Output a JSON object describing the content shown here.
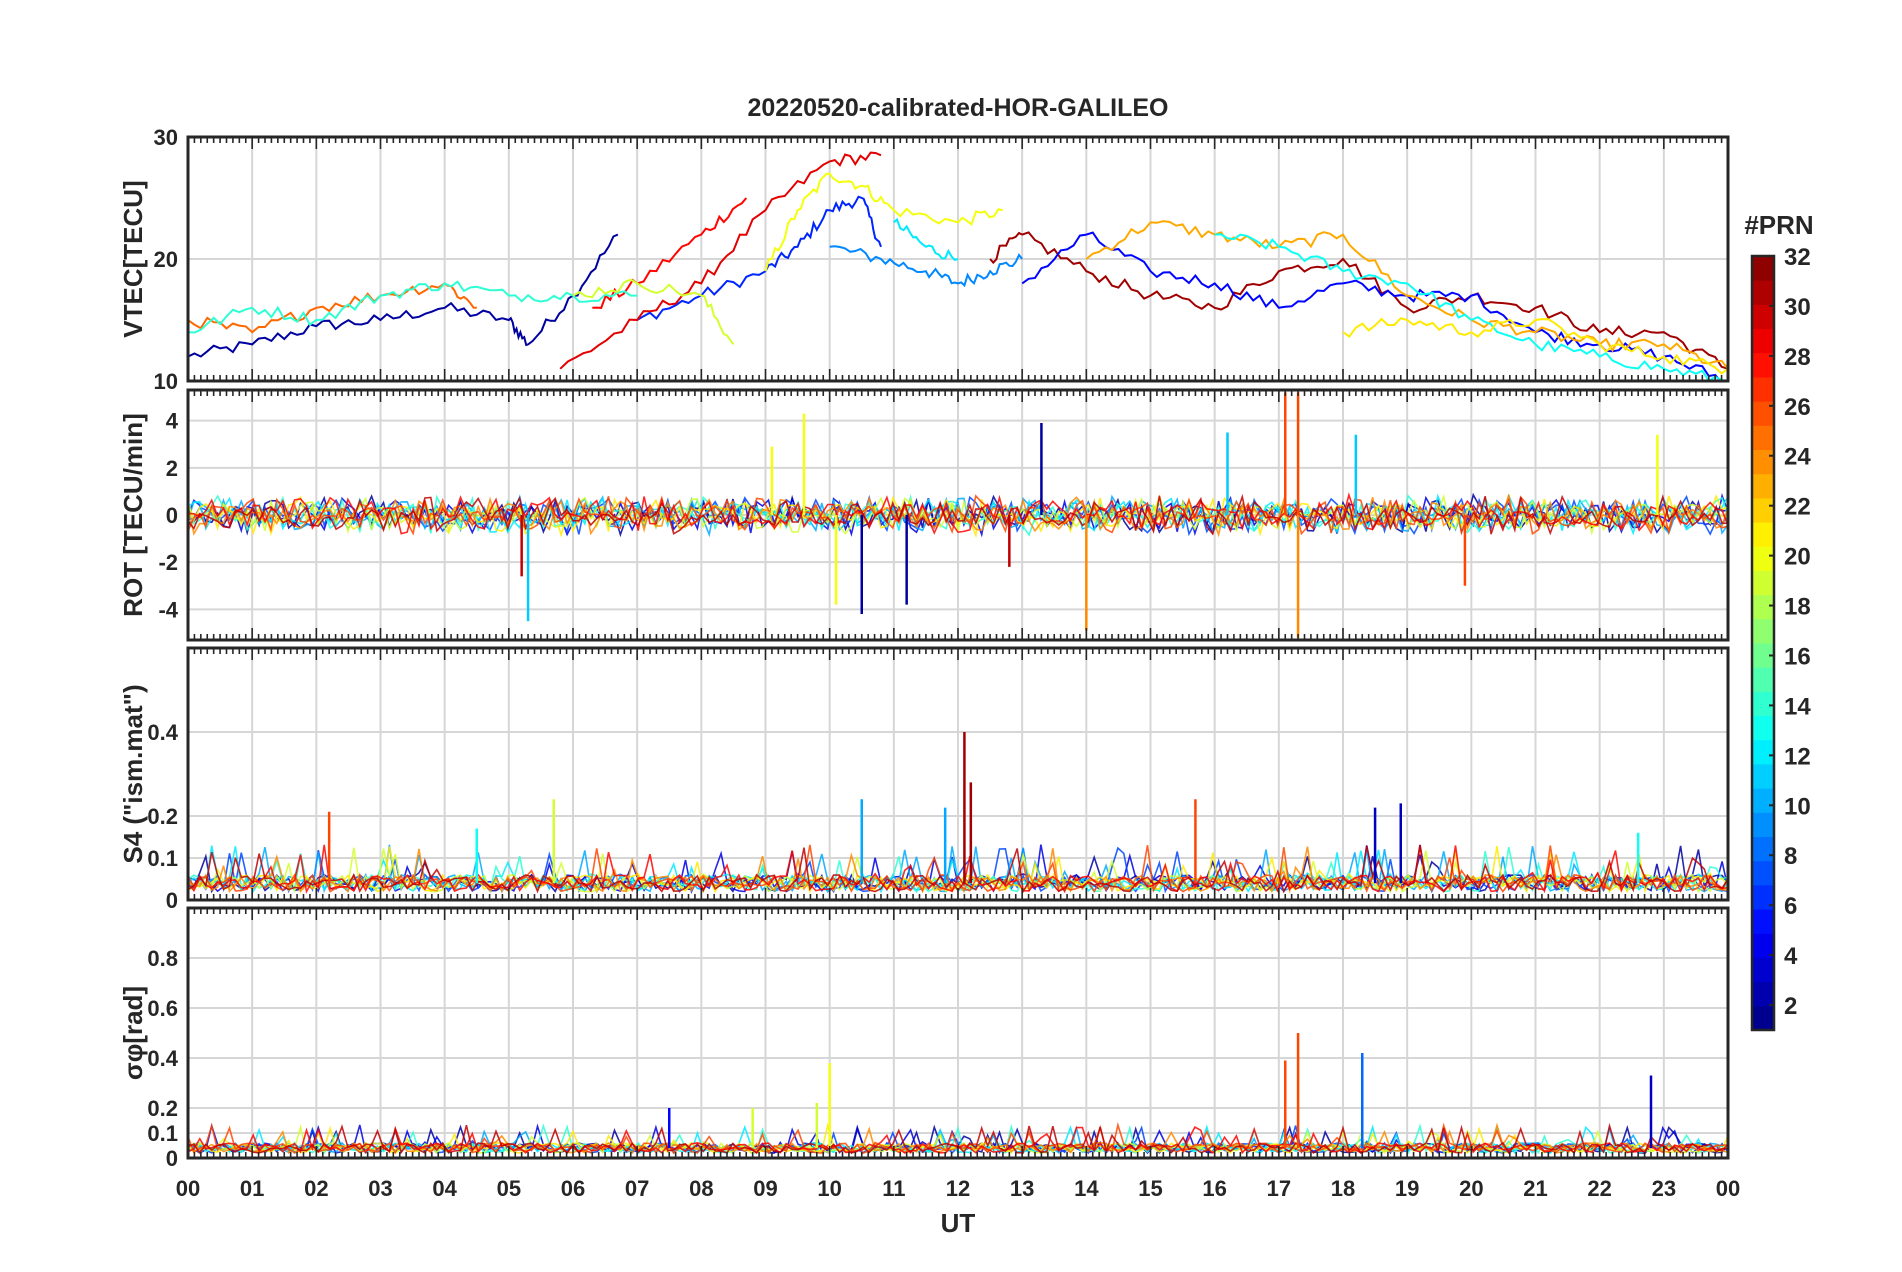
{
  "figure": {
    "title": "20220520-calibrated-HOR-GALILEO",
    "xlabel": "UT",
    "x_tick_labels": [
      "00",
      "01",
      "02",
      "03",
      "04",
      "05",
      "06",
      "07",
      "08",
      "09",
      "10",
      "11",
      "12",
      "13",
      "14",
      "15",
      "16",
      "17",
      "18",
      "19",
      "20",
      "21",
      "22",
      "23",
      "00"
    ]
  },
  "colorbar": {
    "label": "#PRN",
    "range": [
      1,
      32
    ],
    "tick_labels": [
      "2",
      "4",
      "6",
      "8",
      "10",
      "12",
      "14",
      "16",
      "18",
      "20",
      "22",
      "24",
      "26",
      "28",
      "30",
      "32"
    ],
    "colormap": "jet"
  },
  "chart_data": [
    {
      "type": "line",
      "panel": "VTEC",
      "ylabel": "VTEC[TECU]",
      "ylim": [
        10,
        30
      ],
      "yticks": [
        "10",
        "20",
        "30"
      ],
      "grid": true,
      "xlim_hours": [
        0,
        24
      ],
      "series": [
        {
          "prn": 2,
          "x": [
            0,
            1,
            2,
            3,
            4,
            5,
            5.3,
            6,
            6.7
          ],
          "y": [
            12,
            13,
            14.5,
            15,
            16,
            15,
            13,
            17,
            22
          ]
        },
        {
          "prn": 6,
          "x": [
            7,
            8,
            9,
            9.5,
            10,
            10.5,
            10.8
          ],
          "y": [
            15,
            17,
            19,
            21,
            24,
            25,
            21
          ]
        },
        {
          "prn": 9,
          "x": [
            10,
            10.8,
            11.5,
            12,
            12.5,
            13
          ],
          "y": [
            21,
            20,
            19,
            18,
            19,
            20
          ]
        },
        {
          "prn": 28,
          "x": [
            6.3,
            7,
            8,
            8.7
          ],
          "y": [
            16,
            18,
            22,
            25
          ]
        },
        {
          "prn": 29,
          "x": [
            5.8,
            7,
            8,
            9,
            10,
            10.8
          ],
          "y": [
            11,
            15,
            18,
            24,
            28,
            28.5
          ]
        },
        {
          "prn": 20,
          "x": [
            9,
            9.5,
            10,
            10.5,
            11,
            12,
            12.7
          ],
          "y": [
            19,
            24,
            27,
            26,
            24,
            23,
            24
          ]
        },
        {
          "prn": 12,
          "x": [
            11,
            11.5,
            12
          ],
          "y": [
            23,
            21,
            20
          ]
        },
        {
          "prn": 31,
          "x": [
            12.5,
            13,
            14,
            15,
            16,
            17,
            18,
            19,
            20,
            21,
            22,
            23,
            24
          ],
          "y": [
            20,
            22,
            19,
            17,
            16,
            19,
            20,
            16,
            17,
            16,
            14,
            14,
            11
          ]
        },
        {
          "prn": 5,
          "x": [
            13,
            14,
            15,
            16,
            17,
            18,
            19,
            20,
            21,
            22,
            23,
            24
          ],
          "y": [
            18,
            22,
            19,
            18,
            16,
            18,
            17,
            17,
            14,
            13,
            12,
            10
          ]
        },
        {
          "prn": 23,
          "x": [
            14,
            15,
            16,
            17,
            18,
            19,
            20,
            21,
            22,
            23,
            24
          ],
          "y": [
            20,
            23,
            22,
            21,
            22,
            17,
            15,
            14,
            13,
            13,
            11
          ]
        },
        {
          "prn": 13,
          "x": [
            16,
            17,
            18,
            19,
            20,
            21,
            22,
            23,
            24
          ],
          "y": [
            22,
            21,
            19,
            18,
            15,
            13,
            12,
            11,
            10
          ]
        },
        {
          "prn": 25,
          "x": [
            0,
            1,
            2,
            3,
            4,
            4.5
          ],
          "y": [
            15,
            14,
            16,
            17,
            18,
            16
          ]
        },
        {
          "prn": 14,
          "x": [
            0,
            1,
            2,
            3,
            4,
            5,
            6,
            7
          ],
          "y": [
            14,
            16,
            15,
            17,
            18,
            17,
            17,
            17
          ]
        },
        {
          "prn": 19,
          "x": [
            6,
            7,
            8,
            8.5
          ],
          "y": [
            17,
            18,
            17,
            13
          ]
        },
        {
          "prn": 21,
          "x": [
            18,
            19,
            20,
            21,
            22,
            23,
            24
          ],
          "y": [
            14,
            15,
            14,
            15,
            13,
            12,
            11
          ]
        }
      ]
    },
    {
      "type": "line",
      "panel": "ROT",
      "ylabel": "ROT [TECU/min]",
      "ylim": [
        -5.3,
        5.3
      ],
      "yticks": [
        "-4",
        "-2",
        "0",
        "2",
        "4"
      ],
      "grid": true,
      "xlim_hours": [
        0,
        24
      ],
      "noise_baseline": 0.35,
      "series": [
        {
          "prn": 2,
          "x": [
            10.5,
            11.2,
            13.3
          ],
          "y": [
            -4.2,
            -3.8,
            3.9
          ]
        },
        {
          "prn": 11,
          "x": [
            5.3,
            16.2,
            18.2
          ],
          "y": [
            -4.5,
            3.5,
            3.4
          ]
        },
        {
          "prn": 20,
          "x": [
            9.1,
            9.6,
            10.1,
            22.9
          ],
          "y": [
            2.9,
            4.3,
            -3.8,
            3.4
          ]
        },
        {
          "prn": 24,
          "x": [
            14,
            17.3
          ],
          "y": [
            -4.9,
            -5.2
          ]
        },
        {
          "prn": 26,
          "x": [
            17.1,
            17.3,
            19.9
          ],
          "y": [
            5.2,
            5.2,
            -3.0
          ]
        },
        {
          "prn": 30,
          "x": [
            5.2,
            12.8
          ],
          "y": [
            -2.6,
            -2.2
          ]
        }
      ]
    },
    {
      "type": "line",
      "panel": "S4",
      "ylabel": "S4 (\"ism.mat\")",
      "ylim": [
        0,
        0.6
      ],
      "yticks": [
        "0",
        "0.1",
        "0.2",
        "0.4"
      ],
      "grid": true,
      "xlim_hours": [
        0,
        24
      ],
      "noise_baseline": 0.04,
      "series": [
        {
          "prn": 31,
          "x": [
            12.1,
            12.2
          ],
          "y": [
            0.4,
            0.28
          ]
        },
        {
          "prn": 26,
          "x": [
            2.2,
            15.7
          ],
          "y": [
            0.21,
            0.24
          ]
        },
        {
          "prn": 19,
          "x": [
            5.7
          ],
          "y": [
            0.24
          ]
        },
        {
          "prn": 10,
          "x": [
            10.5,
            11.8
          ],
          "y": [
            0.24,
            0.22
          ]
        },
        {
          "prn": 3,
          "x": [
            18.5,
            18.9
          ],
          "y": [
            0.22,
            0.23
          ]
        },
        {
          "prn": 13,
          "x": [
            4.5,
            22.6
          ],
          "y": [
            0.17,
            0.16
          ]
        }
      ]
    },
    {
      "type": "line",
      "panel": "sigma_phi",
      "ylabel": "σφ[rad]",
      "ylim": [
        0,
        1
      ],
      "yticks": [
        "0",
        "0.1",
        "0.2",
        "0.4",
        "0.6",
        "0.8"
      ],
      "grid": true,
      "xlim_hours": [
        0,
        24
      ],
      "noise_baseline": 0.04,
      "series": [
        {
          "prn": 26,
          "x": [
            17.1,
            17.3
          ],
          "y": [
            0.39,
            0.5
          ]
        },
        {
          "prn": 8,
          "x": [
            18.3
          ],
          "y": [
            0.42
          ]
        },
        {
          "prn": 20,
          "x": [
            10.0
          ],
          "y": [
            0.38
          ]
        },
        {
          "prn": 3,
          "x": [
            22.8
          ],
          "y": [
            0.33
          ]
        },
        {
          "prn": 19,
          "x": [
            8.8,
            9.8
          ],
          "y": [
            0.2,
            0.22
          ]
        },
        {
          "prn": 5,
          "x": [
            7.5
          ],
          "y": [
            0.2
          ]
        }
      ]
    }
  ]
}
